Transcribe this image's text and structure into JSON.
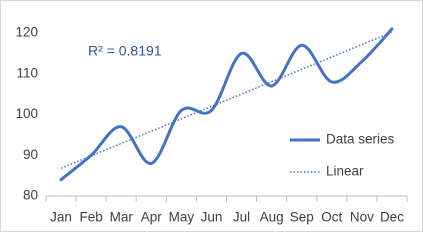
{
  "chart_data": {
    "type": "line",
    "categories": [
      "Jan",
      "Feb",
      "Mar",
      "Apr",
      "May",
      "Jun",
      "Jul",
      "Aug",
      "Sep",
      "Oct",
      "Nov",
      "Dec"
    ],
    "series": [
      {
        "name": "Data series",
        "color": "#4472c4",
        "values": [
          84,
          90,
          97,
          88,
          101,
          101,
          115,
          107,
          117,
          108,
          113,
          121
        ]
      }
    ],
    "trendline": {
      "name": "Linear",
      "color": "#4472c4"
    },
    "annotation": "R² = 0.8191",
    "smooth": true,
    "ylim": [
      80,
      120
    ],
    "yticks": [
      80,
      90,
      100,
      110,
      120
    ],
    "legend": "right"
  }
}
